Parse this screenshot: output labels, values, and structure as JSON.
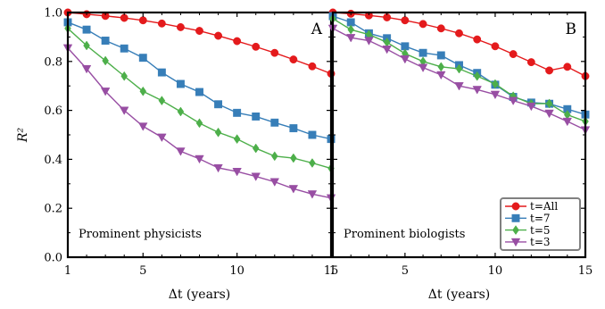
{
  "chart_data": [
    {
      "type": "line",
      "panel_tag": "A",
      "caption": "Prominent physicists",
      "xlabel": "Δt (years)",
      "ylabel": "R²",
      "xlim": [
        1,
        15
      ],
      "ylim": [
        0.0,
        1.0
      ],
      "xticks": [
        1,
        5,
        10,
        15
      ],
      "yticks": [
        0.0,
        0.2,
        0.4,
        0.6,
        0.8,
        1.0
      ],
      "ytick_labels": [
        "0.0",
        "0.2",
        "0.4",
        "0.6",
        "0.8",
        "1.0"
      ],
      "x": [
        1,
        2,
        3,
        4,
        5,
        6,
        7,
        8,
        9,
        10,
        11,
        12,
        13,
        14,
        15
      ],
      "series": [
        {
          "name": "t=All",
          "color": "#e41a1c",
          "marker": "circle",
          "values": [
            1.0,
            0.993,
            0.986,
            0.978,
            0.968,
            0.955,
            0.94,
            0.925,
            0.905,
            0.883,
            0.86,
            0.835,
            0.808,
            0.78,
            0.75
          ]
        },
        {
          "name": "t=7",
          "color": "#377eb8",
          "marker": "square",
          "values": [
            0.96,
            0.93,
            0.885,
            0.853,
            0.815,
            0.755,
            0.708,
            0.675,
            0.625,
            0.59,
            0.575,
            0.55,
            0.527,
            0.5,
            0.483
          ]
        },
        {
          "name": "t=5",
          "color": "#4daf4a",
          "marker": "diamond",
          "values": [
            0.935,
            0.865,
            0.803,
            0.74,
            0.678,
            0.64,
            0.595,
            0.548,
            0.51,
            0.483,
            0.445,
            0.413,
            0.405,
            0.385,
            0.363
          ]
        },
        {
          "name": "t=3",
          "color": "#984ea3",
          "marker": "triangle-down",
          "values": [
            0.855,
            0.77,
            0.678,
            0.6,
            0.535,
            0.49,
            0.433,
            0.402,
            0.365,
            0.35,
            0.33,
            0.308,
            0.28,
            0.258,
            0.242
          ]
        }
      ]
    },
    {
      "type": "line",
      "panel_tag": "B",
      "caption": "Prominent biologists",
      "xlabel": "Δt (years)",
      "xlim": [
        1,
        15
      ],
      "ylim": [
        0.0,
        1.0
      ],
      "xticks": [
        1,
        5,
        10,
        15
      ],
      "x": [
        1,
        2,
        3,
        4,
        5,
        6,
        7,
        8,
        9,
        10,
        11,
        12,
        13,
        14,
        15
      ],
      "series": [
        {
          "name": "t=All",
          "color": "#e41a1c",
          "marker": "circle",
          "values": [
            1.0,
            0.995,
            0.988,
            0.98,
            0.968,
            0.953,
            0.935,
            0.915,
            0.89,
            0.862,
            0.83,
            0.797,
            0.763,
            0.778,
            0.74
          ]
        },
        {
          "name": "t=7",
          "color": "#377eb8",
          "marker": "square",
          "values": [
            0.985,
            0.96,
            0.915,
            0.895,
            0.862,
            0.835,
            0.825,
            0.785,
            0.753,
            0.705,
            0.655,
            0.632,
            0.627,
            0.605,
            0.583
          ]
        },
        {
          "name": "t=5",
          "color": "#4daf4a",
          "marker": "diamond",
          "values": [
            0.975,
            0.93,
            0.91,
            0.878,
            0.832,
            0.8,
            0.778,
            0.77,
            0.74,
            0.708,
            0.658,
            0.627,
            0.628,
            0.582,
            0.555
          ]
        },
        {
          "name": "t=3",
          "color": "#984ea3",
          "marker": "triangle-down",
          "values": [
            0.935,
            0.897,
            0.885,
            0.85,
            0.81,
            0.775,
            0.745,
            0.7,
            0.685,
            0.665,
            0.64,
            0.617,
            0.588,
            0.555,
            0.52
          ]
        }
      ],
      "legend": {
        "placement": "bottom-right",
        "entries": [
          "t=All",
          "t=7",
          "t=5",
          "t=3"
        ]
      }
    }
  ]
}
